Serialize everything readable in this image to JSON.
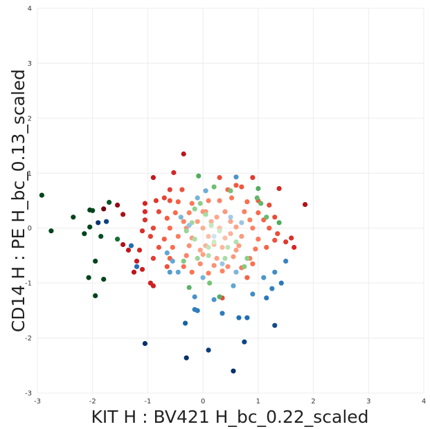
{
  "chart_data": {
    "type": "scatter",
    "title": "",
    "xlabel": "KIT H : BV421 H_bc_0.22_scaled",
    "ylabel": "CD14 H : PE H_bc_0.13_scaled",
    "xlim": [
      -3,
      4
    ],
    "ylim": [
      -3,
      4
    ],
    "xticks": [
      "-3",
      "-2",
      "-1",
      "0",
      "1",
      "2",
      "3",
      "4"
    ],
    "yticks": [
      "-3",
      "-2",
      "-1",
      "0",
      "1",
      "2",
      "3",
      "4"
    ],
    "grid": true,
    "legend": "none",
    "colormaps": [
      "Reds",
      "Greens",
      "Blues"
    ],
    "series": [
      {
        "colormap": "Reds",
        "points": [
          [
            -0.35,
            1.35
          ],
          [
            -0.53,
            1.01
          ],
          [
            -0.9,
            0.92
          ],
          [
            0.3,
            0.92
          ],
          [
            0.9,
            0.92
          ],
          [
            -0.6,
            0.7
          ],
          [
            -0.38,
            0.7
          ],
          [
            0.6,
            0.78
          ],
          [
            0.7,
            0.75
          ],
          [
            1.38,
            0.72
          ],
          [
            0.45,
            0.7
          ],
          [
            -1.05,
            0.45
          ],
          [
            -0.85,
            0.5
          ],
          [
            -0.7,
            0.55
          ],
          [
            -0.6,
            0.5
          ],
          [
            -0.45,
            0.48
          ],
          [
            -0.2,
            0.45
          ],
          [
            0.1,
            0.5
          ],
          [
            0.3,
            0.5
          ],
          [
            0.52,
            0.55
          ],
          [
            0.8,
            0.48
          ],
          [
            1.0,
            0.5
          ],
          [
            1.2,
            0.42
          ],
          [
            -1.05,
            0.3
          ],
          [
            -0.8,
            0.3
          ],
          [
            -0.5,
            0.28
          ],
          [
            -0.25,
            0.28
          ],
          [
            0.05,
            0.3
          ],
          [
            0.4,
            0.3
          ],
          [
            0.75,
            0.3
          ],
          [
            1.0,
            0.28
          ],
          [
            1.3,
            0.2
          ],
          [
            -1.05,
            0.15
          ],
          [
            -0.65,
            0.18
          ],
          [
            -0.35,
            0.12
          ],
          [
            -0.1,
            0.12
          ],
          [
            0.15,
            0.12
          ],
          [
            0.5,
            0.12
          ],
          [
            0.85,
            0.15
          ],
          [
            1.1,
            0.15
          ],
          [
            -1.1,
            -0.05
          ],
          [
            -0.9,
            0.0
          ],
          [
            -0.6,
            0.0
          ],
          [
            -0.3,
            0.0
          ],
          [
            0.0,
            0.0
          ],
          [
            0.3,
            0.0
          ],
          [
            0.6,
            0.02
          ],
          [
            0.9,
            0.0
          ],
          [
            1.2,
            0.0
          ],
          [
            1.35,
            -0.1
          ],
          [
            -0.95,
            -0.15
          ],
          [
            -0.7,
            -0.2
          ],
          [
            -0.45,
            -0.15
          ],
          [
            -0.2,
            -0.18
          ],
          [
            0.1,
            -0.15
          ],
          [
            0.4,
            -0.18
          ],
          [
            0.7,
            -0.15
          ],
          [
            1.0,
            -0.2
          ],
          [
            1.3,
            -0.22
          ],
          [
            1.5,
            -0.25
          ],
          [
            -1.15,
            -0.4
          ],
          [
            -0.8,
            -0.35
          ],
          [
            -0.55,
            -0.35
          ],
          [
            -0.25,
            -0.32
          ],
          [
            0.05,
            -0.32
          ],
          [
            0.35,
            -0.35
          ],
          [
            0.65,
            -0.32
          ],
          [
            0.95,
            -0.38
          ],
          [
            1.15,
            -0.35
          ],
          [
            -0.9,
            -0.55
          ],
          [
            -0.6,
            -0.55
          ],
          [
            -0.3,
            -0.5
          ],
          [
            0.0,
            -0.48
          ],
          [
            0.25,
            -0.55
          ],
          [
            0.55,
            -0.52
          ],
          [
            0.85,
            -0.55
          ],
          [
            -0.65,
            -0.7
          ],
          [
            -0.35,
            -0.7
          ],
          [
            -0.05,
            -0.65
          ],
          [
            0.2,
            -0.68
          ],
          [
            0.45,
            -0.7
          ],
          [
            0.7,
            -0.72
          ],
          [
            0.9,
            -0.65
          ],
          [
            -0.2,
            -0.8
          ],
          [
            0.1,
            -0.82
          ],
          [
            0.35,
            -0.78
          ],
          [
            -0.95,
            -1.0
          ],
          [
            -0.9,
            -1.05
          ],
          [
            0.35,
            -1.27
          ],
          [
            0.8,
            -0.9
          ],
          [
            -1.2,
            -0.6
          ],
          [
            -1.1,
            -0.75
          ],
          [
            -1.25,
            -0.8
          ],
          [
            -1.35,
            -0.4
          ],
          [
            -1.45,
            -0.3
          ],
          [
            -1.8,
            0.35
          ],
          [
            -1.55,
            0.42
          ],
          [
            -1.45,
            0.25
          ],
          [
            1.6,
            -0.18
          ],
          [
            1.65,
            -0.35
          ],
          [
            1.85,
            0.43
          ],
          [
            0.2,
            -0.3
          ],
          [
            0.5,
            -0.1
          ],
          [
            0.25,
            0.2
          ],
          [
            -0.05,
            -0.4
          ],
          [
            0.6,
            -0.4
          ],
          [
            0.0,
            0.3
          ]
        ]
      },
      {
        "colormap": "Greens",
        "points": [
          [
            -2.92,
            0.6
          ],
          [
            -2.75,
            -0.05
          ],
          [
            -2.35,
            0.2
          ],
          [
            -2.05,
            0.33
          ],
          [
            -2.0,
            0.32
          ],
          [
            -2.05,
            0.02
          ],
          [
            -1.7,
            0.47
          ],
          [
            -2.15,
            -0.1
          ],
          [
            -1.85,
            -0.15
          ],
          [
            -1.55,
            -0.2
          ],
          [
            -1.95,
            -0.6
          ],
          [
            -1.8,
            -0.93
          ],
          [
            -2.07,
            -0.9
          ],
          [
            -1.95,
            -1.23
          ],
          [
            -0.08,
            0.95
          ],
          [
            0.2,
            0.75
          ],
          [
            0.5,
            0.68
          ],
          [
            1.0,
            0.72
          ],
          [
            0.98,
            0.55
          ],
          [
            1.05,
            0.45
          ],
          [
            1.15,
            0.2
          ],
          [
            1.38,
            0.1
          ],
          [
            -0.15,
            0.35
          ],
          [
            0.05,
            0.25
          ],
          [
            -0.3,
            -0.05
          ],
          [
            -0.15,
            -0.2
          ],
          [
            0.2,
            -0.25
          ],
          [
            0.45,
            -0.35
          ],
          [
            -0.35,
            -0.6
          ],
          [
            -0.1,
            -0.55
          ],
          [
            0.1,
            -0.5
          ],
          [
            0.8,
            -0.55
          ],
          [
            0.75,
            -0.7
          ],
          [
            -0.25,
            -1.08
          ],
          [
            0.12,
            -1.0
          ],
          [
            0.3,
            -1.25
          ],
          [
            -0.05,
            0.45
          ],
          [
            0.15,
            0.05
          ],
          [
            -0.2,
            0.1
          ],
          [
            0.3,
            -0.05
          ],
          [
            0.6,
            -0.25
          ],
          [
            0.1,
            -0.35
          ],
          [
            0.4,
            -0.55
          ]
        ]
      },
      {
        "colormap": "Blues",
        "points": [
          [
            -1.9,
            0.1
          ],
          [
            -1.75,
            0.12
          ],
          [
            -1.3,
            -0.32
          ],
          [
            -1.2,
            -0.7
          ],
          [
            -1.05,
            -2.1
          ],
          [
            -0.65,
            -0.45
          ],
          [
            -0.55,
            -0.6
          ],
          [
            -0.45,
            -0.8
          ],
          [
            -0.3,
            -2.36
          ],
          [
            -0.32,
            -1.73
          ],
          [
            -0.15,
            -1.48
          ],
          [
            -0.1,
            -1.5
          ],
          [
            0.1,
            -2.22
          ],
          [
            0.55,
            -2.6
          ],
          [
            0.75,
            -2.07
          ],
          [
            1.3,
            -1.77
          ],
          [
            0.65,
            -1.63
          ],
          [
            0.8,
            -1.63
          ],
          [
            0.35,
            -1.55
          ],
          [
            1.15,
            -1.27
          ],
          [
            1.25,
            -1.1
          ],
          [
            1.1,
            -0.9
          ],
          [
            1.3,
            -0.8
          ],
          [
            1.42,
            -1.0
          ],
          [
            1.5,
            -0.6
          ],
          [
            -0.1,
            0.55
          ],
          [
            0.05,
            0.68
          ],
          [
            0.6,
            0.93
          ],
          [
            0.2,
            -0.15
          ],
          [
            0.5,
            0.2
          ],
          [
            -0.25,
            0.05
          ],
          [
            0.35,
            -0.65
          ],
          [
            0.6,
            -0.8
          ],
          [
            0.0,
            -0.9
          ],
          [
            0.2,
            -1.3
          ],
          [
            -0.15,
            -1.25
          ],
          [
            0.55,
            -1.05
          ],
          [
            0.9,
            -1.2
          ],
          [
            -0.4,
            0.2
          ],
          [
            0.7,
            0.1
          ],
          [
            -0.6,
            -0.8
          ]
        ]
      }
    ]
  }
}
